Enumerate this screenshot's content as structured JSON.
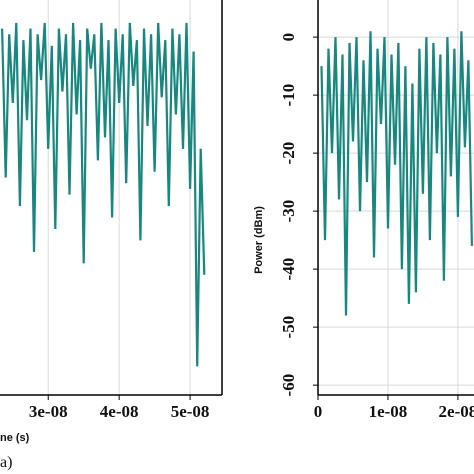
{
  "chart_data": [
    {
      "type": "line",
      "x_label": "ne (s)",
      "caption": "a)",
      "xlim": [
        2.32e-08,
        5.45e-08
      ],
      "ylim": [
        -63,
        6
      ],
      "xticks": [
        {
          "value": 3e-08,
          "label": "3e-08"
        },
        {
          "value": 4e-08,
          "label": "4e-08"
        },
        {
          "value": 5e-08,
          "label": "5e-08"
        }
      ],
      "grid": true,
      "series": [
        {
          "color": "#17877f",
          "x": [
            2.35e-08,
            2.4e-08,
            2.45e-08,
            2.5e-08,
            2.55e-08,
            2.6e-08,
            2.65e-08,
            2.7e-08,
            2.75e-08,
            2.8e-08,
            2.85e-08,
            2.9e-08,
            2.95e-08,
            3e-08,
            3.05e-08,
            3.1e-08,
            3.15e-08,
            3.2e-08,
            3.25e-08,
            3.3e-08,
            3.35e-08,
            3.4e-08,
            3.45e-08,
            3.5e-08,
            3.55e-08,
            3.6e-08,
            3.65e-08,
            3.7e-08,
            3.75e-08,
            3.8e-08,
            3.85e-08,
            3.9e-08,
            3.95e-08,
            4e-08,
            4.05e-08,
            4.1e-08,
            4.15e-08,
            4.2e-08,
            4.25e-08,
            4.3e-08,
            4.35e-08,
            4.4e-08,
            4.45e-08,
            4.5e-08,
            4.55e-08,
            4.6e-08,
            4.65e-08,
            4.7e-08,
            4.75e-08,
            4.8e-08,
            4.85e-08,
            4.9e-08,
            4.95e-08,
            5e-08,
            5.05e-08,
            5.1e-08,
            5.15e-08,
            5.2e-08
          ],
          "values": [
            1,
            -25,
            0,
            -12,
            2,
            -30,
            -1,
            -15,
            1,
            -38,
            0,
            -8,
            2,
            -20,
            -2,
            -34,
            1,
            -10,
            0,
            -28,
            2,
            -14,
            -1,
            -40,
            1,
            -6,
            0,
            -22,
            2,
            -18,
            -1,
            -32,
            1,
            -12,
            0,
            -26,
            2,
            -9,
            -1,
            -36,
            1,
            -16,
            0,
            -24,
            2,
            -11,
            -1,
            -30,
            1,
            -14,
            0,
            -20,
            2,
            -27,
            -3,
            -58,
            -20,
            -42
          ]
        }
      ]
    },
    {
      "type": "line",
      "y_label": "Power (dBm)",
      "xlim": [
        0,
        2.23e-08
      ],
      "ylim": [
        -61.7,
        6.4
      ],
      "xticks": [
        0,
        {
          "value": 1e-08,
          "label": "1e-08"
        },
        {
          "value": 2e-08,
          "label": "2e-08"
        }
      ],
      "yticks": [
        0,
        -10,
        -20,
        -30,
        -40,
        -50,
        -60
      ],
      "grid": true,
      "series": [
        {
          "color": "#17877f",
          "x": [
            5e-10,
            1e-09,
            1.5e-09,
            2e-09,
            2.5e-09,
            3e-09,
            3.5e-09,
            4e-09,
            4.5e-09,
            5e-09,
            5.5e-09,
            6e-09,
            6.5e-09,
            7e-09,
            7.5e-09,
            8e-09,
            8.5e-09,
            9e-09,
            9.5e-09,
            1e-08,
            1.05e-08,
            1.1e-08,
            1.15e-08,
            1.2e-08,
            1.25e-08,
            1.3e-08,
            1.35e-08,
            1.4e-08,
            1.45e-08,
            1.5e-08,
            1.55e-08,
            1.6e-08,
            1.65e-08,
            1.7e-08,
            1.75e-08,
            1.8e-08,
            1.85e-08,
            1.9e-08,
            1.95e-08,
            2e-08,
            2.05e-08,
            2.1e-08,
            2.15e-08,
            2.2e-08
          ],
          "values": [
            -5,
            -35,
            -2,
            -20,
            0,
            -28,
            -3,
            -48,
            -1,
            -18,
            0,
            -30,
            -4,
            -25,
            1,
            -38,
            -2,
            -15,
            0,
            -33,
            -3,
            -22,
            -1,
            -40,
            -5,
            -46,
            -8,
            -44,
            -2,
            -27,
            0,
            -35,
            -1,
            -20,
            -3,
            -42,
            0,
            -24,
            -2,
            -31,
            1,
            -19,
            -4,
            -36
          ]
        }
      ]
    }
  ]
}
